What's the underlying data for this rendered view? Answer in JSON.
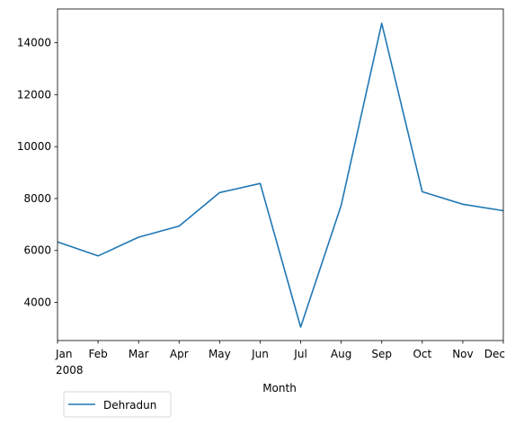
{
  "chart_data": {
    "type": "line",
    "x": [
      "2008-01",
      "2008-02",
      "2008-03",
      "2008-04",
      "2008-05",
      "2008-06",
      "2008-07",
      "2008-08",
      "2008-09",
      "2008-10",
      "2008-11",
      "2008-12"
    ],
    "x_tick_labels": [
      "Jan",
      "Feb",
      "Mar",
      "Apr",
      "May",
      "Jun",
      "Jul",
      "Aug",
      "Sep",
      "Oct",
      "Nov",
      "Dec"
    ],
    "x_tick_year_label": "2008",
    "series": [
      {
        "name": "Dehradun",
        "values": [
          6330,
          5790,
          6510,
          6940,
          8230,
          8580,
          3050,
          7740,
          14750,
          8260,
          7780,
          7530
        ],
        "color": "#1f77b4"
      }
    ],
    "y_ticks": [
      4000,
      6000,
      8000,
      10000,
      12000,
      14000
    ],
    "ylim": [
      2530,
      15300
    ],
    "xlabel": "Month",
    "ylabel": "",
    "title": "",
    "grid": false,
    "legend_placement": "below-left"
  }
}
